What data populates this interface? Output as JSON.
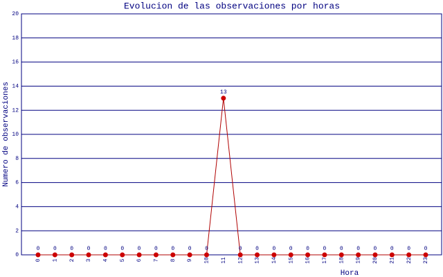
{
  "chart_data": {
    "type": "line",
    "title": "Evolucion de las observaciones por horas",
    "x_label": "Hora",
    "y_label": "Numero de observaciones",
    "categories": [
      "0",
      "1",
      "2",
      "3",
      "4",
      "5",
      "6",
      "7",
      "8",
      "9",
      "10",
      "11",
      "12",
      "13",
      "14",
      "15",
      "16",
      "17",
      "18",
      "19",
      "20",
      "21",
      "22",
      "23"
    ],
    "series": [
      {
        "name": "Observaciones",
        "color": "#b00000",
        "values": [
          0,
          0,
          0,
          0,
          0,
          0,
          0,
          0,
          0,
          0,
          0,
          13,
          0,
          0,
          0,
          0,
          0,
          0,
          0,
          0,
          0,
          0,
          0,
          0
        ]
      }
    ],
    "marker_color": "#cc0000",
    "ylim": [
      0,
      20
    ],
    "yticks": [
      0,
      2,
      4,
      6,
      8,
      10,
      12,
      14,
      16,
      18,
      20
    ],
    "grid": true
  }
}
